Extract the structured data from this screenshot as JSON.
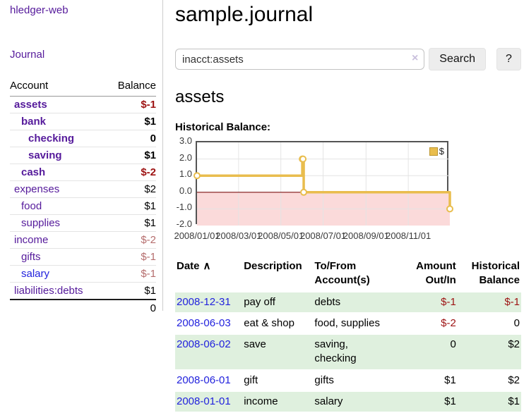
{
  "app": {
    "title": "hledger-web",
    "nav_journal": "Journal"
  },
  "colors": {
    "link_purple": "#551a9b",
    "link_blue": "#2222dd",
    "negative_strong": "#9d1212",
    "negative_light": "#b56d6d",
    "row_green": "#dff0de",
    "series_gold": "#e9bd4d"
  },
  "sidebar": {
    "accounts_header": {
      "account": "Account",
      "balance": "Balance"
    },
    "accounts": [
      {
        "name": "assets",
        "balance": "$-1",
        "depth": 1,
        "emphasis": true,
        "balance_tone": "neg-strong",
        "link_tone": "purple"
      },
      {
        "name": "bank",
        "balance": "$1",
        "depth": 2,
        "emphasis": true,
        "balance_tone": "pos",
        "link_tone": "purple"
      },
      {
        "name": "checking",
        "balance": "0",
        "depth": 3,
        "emphasis": true,
        "balance_tone": "pos",
        "link_tone": "purple"
      },
      {
        "name": "saving",
        "balance": "$1",
        "depth": 3,
        "emphasis": true,
        "balance_tone": "pos",
        "link_tone": "purple"
      },
      {
        "name": "cash",
        "balance": "$-2",
        "depth": 2,
        "emphasis": true,
        "balance_tone": "neg-strong",
        "link_tone": "purple"
      },
      {
        "name": "expenses",
        "balance": "$2",
        "depth": 1,
        "emphasis": false,
        "balance_tone": "pos",
        "link_tone": "purple"
      },
      {
        "name": "food",
        "balance": "$1",
        "depth": 2,
        "emphasis": false,
        "balance_tone": "pos",
        "link_tone": "purple"
      },
      {
        "name": "supplies",
        "balance": "$1",
        "depth": 2,
        "emphasis": false,
        "balance_tone": "pos",
        "link_tone": "purple"
      },
      {
        "name": "income",
        "balance": "$-2",
        "depth": 1,
        "emphasis": false,
        "balance_tone": "neg-light",
        "link_tone": "purple"
      },
      {
        "name": "gifts",
        "balance": "$-1",
        "depth": 2,
        "emphasis": false,
        "balance_tone": "neg-light",
        "link_tone": "purple"
      },
      {
        "name": "salary",
        "balance": "$-1",
        "depth": 2,
        "emphasis": false,
        "balance_tone": "neg-light",
        "link_tone": "blue"
      },
      {
        "name": "liabilities:debts",
        "balance": "$1",
        "depth": 1,
        "emphasis": false,
        "balance_tone": "pos",
        "link_tone": "purple"
      }
    ],
    "total": "0"
  },
  "main": {
    "title": "sample.journal",
    "search": {
      "value": "inacct:assets",
      "clear_icon": "×",
      "button_label": "Search",
      "help_label": "?"
    },
    "account_heading": "assets",
    "chart_label": "Historical Balance:"
  },
  "chart_data": {
    "type": "line",
    "step": true,
    "series": [
      {
        "name": "$",
        "color": "#e9bd4d",
        "x": [
          "2008-01-01",
          "2008-06-01",
          "2008-06-02",
          "2008-06-03",
          "2008-12-31"
        ],
        "values": [
          1,
          2,
          2,
          0,
          -1
        ]
      }
    ],
    "xlim": [
      "2008-01-01",
      "2008-12-31"
    ],
    "ylim": [
      -2,
      3
    ],
    "yticks": [
      "3.0",
      "2.0",
      "1.0",
      "0.0",
      "-1.0",
      "-2.0"
    ],
    "xticks": [
      "2008/01/01",
      "2008/03/01",
      "2008/05/01",
      "2008/07/01",
      "2008/09/01",
      "2008/11/01"
    ],
    "legend_position": "top-right",
    "grid": true,
    "negative_region_color": "#fbdada",
    "zero_line_color": "#7d1212",
    "grid_color": "#e4e4e4",
    "legend_label": "$"
  },
  "register": {
    "columns": [
      {
        "lines": [
          "Date"
        ],
        "align": "left",
        "sort_icon": "∧"
      },
      {
        "lines": [
          "Description"
        ],
        "align": "left"
      },
      {
        "lines": [
          "To/From",
          "Account(s)"
        ],
        "align": "left"
      },
      {
        "lines": [
          "Amount",
          "Out/In"
        ],
        "align": "right"
      },
      {
        "lines": [
          "Historical",
          "Balance"
        ],
        "align": "right"
      }
    ],
    "rows": [
      {
        "date": "2008-12-31",
        "description": "pay off",
        "accounts": "debts",
        "amount": "$-1",
        "amount_negative": true,
        "balance": "$-1",
        "balance_negative": true
      },
      {
        "date": "2008-06-03",
        "description": "eat & shop",
        "accounts": "food, supplies",
        "amount": "$-2",
        "amount_negative": true,
        "balance": "0",
        "balance_negative": false
      },
      {
        "date": "2008-06-02",
        "description": "save",
        "accounts": "saving, checking",
        "amount": "0",
        "amount_negative": false,
        "balance": "$2",
        "balance_negative": false
      },
      {
        "date": "2008-06-01",
        "description": "gift",
        "accounts": "gifts",
        "amount": "$1",
        "amount_negative": false,
        "balance": "$2",
        "balance_negative": false
      },
      {
        "date": "2008-01-01",
        "description": "income",
        "accounts": "salary",
        "amount": "$1",
        "amount_negative": false,
        "balance": "$1",
        "balance_negative": false
      }
    ]
  }
}
